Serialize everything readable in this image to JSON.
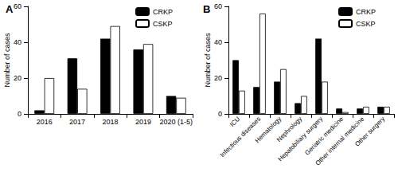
{
  "chart_data": [
    {
      "type": "bar",
      "title": "A",
      "categories": [
        "2016",
        "2017",
        "2018",
        "2019",
        "2020 (1-5)"
      ],
      "y_label": "Number of cases",
      "series": [
        {
          "name": "CRKP",
          "color": "#000000",
          "values": [
            2,
            31,
            42,
            36,
            10
          ]
        },
        {
          "name": "CSKP",
          "color": "#ffffff",
          "values": [
            20,
            14,
            49,
            39,
            9
          ]
        }
      ],
      "ylim": [
        0,
        60
      ],
      "yticks": [
        0,
        20,
        40,
        60
      ],
      "grid": false,
      "legend": "upper right"
    },
    {
      "type": "bar",
      "title": "B",
      "categories": [
        "ICU",
        "Infectious diseases",
        "Hematology",
        "Nephrology",
        "Hepatobiliary surgery",
        "Geriatric medicine",
        "Other internal medicine",
        "Other surgery"
      ],
      "y_label": "Number of cases",
      "series": [
        {
          "name": "CRKP",
          "color": "#000000",
          "values": [
            30,
            15,
            18,
            6,
            42,
            3,
            3,
            4
          ]
        },
        {
          "name": "CSKP",
          "color": "#ffffff",
          "values": [
            13,
            56,
            25,
            10,
            18,
            1,
            4,
            4
          ]
        }
      ],
      "ylim": [
        0,
        60
      ],
      "yticks": [
        0,
        20,
        40,
        60
      ],
      "grid": false,
      "legend": "upper right"
    }
  ]
}
